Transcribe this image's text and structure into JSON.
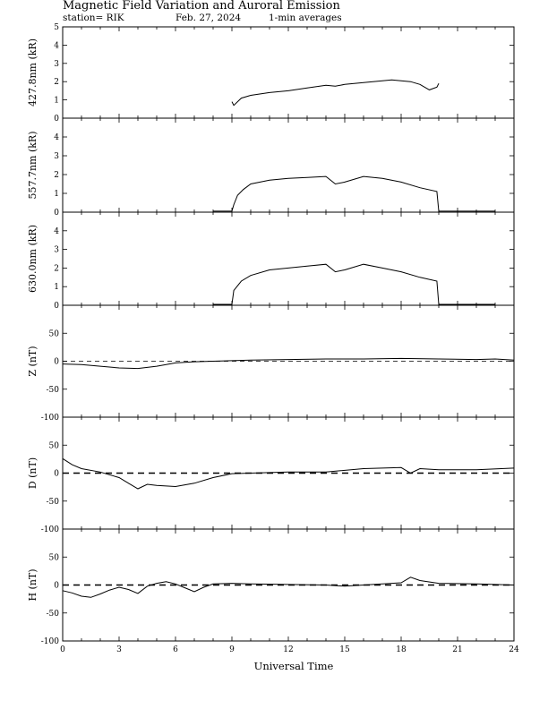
{
  "header": {
    "title": "Magnetic Field Variation and Auroral Emission",
    "station": "station= RIK",
    "date": "Feb. 27, 2024",
    "averaging": "1-min averages"
  },
  "chart_data": [
    {
      "type": "line",
      "ylabel": "427.8nm (kR)",
      "ylim": [
        0,
        5
      ],
      "yticks": [
        0,
        1,
        2,
        3,
        4,
        5
      ],
      "zero_line": false,
      "series": [
        {
          "x": [
            9.0,
            9.1,
            9.5,
            10.0,
            11.0,
            12.0,
            13.0,
            14.0,
            14.5,
            15.0,
            16.0,
            17.0,
            17.5,
            18.0,
            18.5,
            19.0,
            19.5,
            19.9,
            20.0
          ],
          "y": [
            0.9,
            0.7,
            1.1,
            1.25,
            1.4,
            1.5,
            1.65,
            1.8,
            1.75,
            1.85,
            1.95,
            2.05,
            2.1,
            2.05,
            2.0,
            1.85,
            1.55,
            1.7,
            1.9
          ]
        }
      ]
    },
    {
      "type": "line",
      "ylabel": "557.7nm (kR)",
      "ylim": [
        0,
        5
      ],
      "yticks": [
        0,
        1,
        2,
        3,
        4
      ],
      "zero_line": false,
      "series": [
        {
          "x": [
            8.0,
            9.0,
            9.1,
            9.3,
            9.6,
            10.0,
            11.0,
            12.0,
            13.0,
            14.0,
            14.5,
            15.0,
            16.0,
            17.0,
            18.0,
            19.0,
            19.9,
            20.0,
            23.0
          ],
          "y": [
            0.05,
            0.05,
            0.4,
            0.9,
            1.2,
            1.5,
            1.7,
            1.8,
            1.85,
            1.9,
            1.5,
            1.6,
            1.9,
            1.8,
            1.6,
            1.3,
            1.1,
            0.05,
            0.05
          ]
        }
      ]
    },
    {
      "type": "line",
      "ylabel": "630.0nm (kR)",
      "ylim": [
        0,
        5
      ],
      "yticks": [
        0,
        1,
        2,
        3,
        4
      ],
      "zero_line": false,
      "series": [
        {
          "x": [
            8.0,
            9.0,
            9.1,
            9.5,
            10.0,
            11.0,
            12.0,
            13.0,
            14.0,
            14.5,
            15.0,
            16.0,
            17.0,
            18.0,
            19.0,
            19.9,
            20.0,
            23.0
          ],
          "y": [
            0.05,
            0.05,
            0.8,
            1.3,
            1.6,
            1.9,
            2.0,
            2.1,
            2.2,
            1.8,
            1.9,
            2.2,
            2.0,
            1.8,
            1.5,
            1.3,
            0.05,
            0.05
          ]
        }
      ]
    },
    {
      "type": "line",
      "ylabel": "Z (nT)",
      "ylim": [
        -100,
        100
      ],
      "yticks": [
        -100,
        -50,
        0,
        50
      ],
      "zero_line": "thin",
      "series": [
        {
          "x": [
            0,
            1,
            2,
            3,
            4,
            5,
            6,
            7,
            8,
            9,
            10,
            12,
            14,
            16,
            18,
            20,
            22,
            23,
            24
          ],
          "y": [
            -5,
            -6,
            -9,
            -12,
            -13,
            -9,
            -3,
            -1,
            0,
            1,
            2,
            3,
            4,
            4,
            5,
            4,
            3,
            4,
            2
          ]
        }
      ]
    },
    {
      "type": "line",
      "ylabel": "D (nT)",
      "ylim": [
        -100,
        100
      ],
      "yticks": [
        -100,
        -50,
        0,
        50
      ],
      "zero_line": "dashed",
      "series": [
        {
          "x": [
            0,
            0.5,
            1,
            2,
            3,
            3.5,
            4,
            4.5,
            5,
            6,
            7,
            8,
            9,
            10,
            12,
            14,
            16,
            18,
            18.5,
            19,
            20,
            22,
            24
          ],
          "y": [
            26,
            15,
            8,
            2,
            -8,
            -18,
            -28,
            -20,
            -22,
            -24,
            -18,
            -8,
            -1,
            0,
            2,
            2,
            8,
            10,
            0,
            8,
            6,
            6,
            9
          ]
        }
      ]
    },
    {
      "type": "line",
      "ylabel": "H (nT)",
      "ylim": [
        -100,
        100
      ],
      "yticks": [
        -100,
        -50,
        0,
        50
      ],
      "zero_line": "dashed",
      "series": [
        {
          "x": [
            0,
            0.5,
            1,
            1.5,
            2,
            2.5,
            3,
            3.5,
            4,
            4.5,
            5,
            5.5,
            6,
            6.5,
            7,
            7.5,
            8,
            9,
            10,
            12,
            14,
            15,
            16,
            17,
            18,
            18.5,
            19,
            20,
            22,
            24
          ],
          "y": [
            -10,
            -14,
            -20,
            -22,
            -16,
            -9,
            -4,
            -8,
            -15,
            -2,
            3,
            6,
            2,
            -5,
            -12,
            -4,
            2,
            3,
            2,
            1,
            0,
            -2,
            0,
            2,
            4,
            14,
            8,
            3,
            2,
            0
          ]
        }
      ]
    }
  ],
  "xaxis": {
    "label": "Universal Time",
    "xlim": [
      0,
      24
    ],
    "ticks": [
      0,
      3,
      6,
      9,
      12,
      15,
      18,
      21,
      24
    ]
  }
}
